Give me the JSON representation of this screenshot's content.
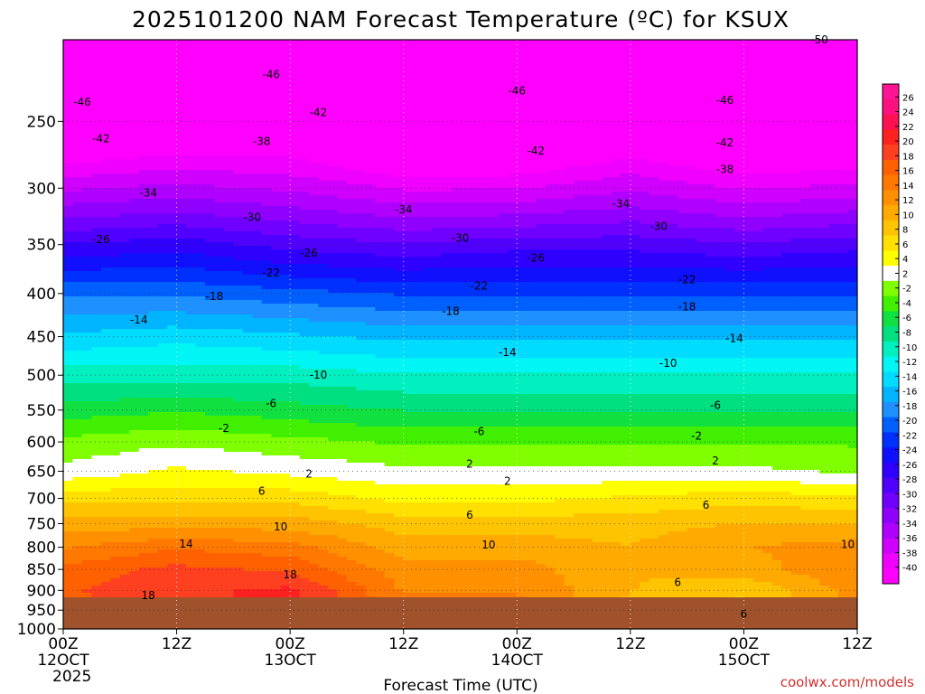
{
  "title": "2025101200 NAM Forecast Temperature (ºC) for KSUX",
  "xlabel": "Forecast Time (UTC)",
  "credit": "coolwx.com/models",
  "colors": {
    "ground": "#a0522d",
    "freezing_line": "#e0208a",
    "scale": [
      "#ff00ff",
      "#f000ff",
      "#d000ff",
      "#b000ff",
      "#9000ff",
      "#7000ff",
      "#5000ff",
      "#3000ff",
      "#1010ff",
      "#0030ff",
      "#0060ff",
      "#1e90ff",
      "#00b4ff",
      "#00dcff",
      "#00f5f5",
      "#00f0c0",
      "#00e080",
      "#10e040",
      "#40f000",
      "#80ff00",
      "#ffffff",
      "#ffff00",
      "#ffe000",
      "#ffc400",
      "#ffaa00",
      "#ff9000",
      "#ff7800",
      "#ff6000",
      "#ff4020",
      "#ff2020",
      "#ff1050",
      "#ff1080",
      "#ff1493"
    ]
  },
  "chart_data": {
    "type": "heatmap",
    "title": "2025101200 NAM Forecast Temperature (ºC) for KSUX",
    "xlabel": "Forecast Time (UTC)",
    "ylabel": "",
    "x_ticks": [
      {
        "t": 0,
        "l1": "00Z",
        "l2": "12OCT",
        "l3": "2025"
      },
      {
        "t": 12,
        "l1": "12Z",
        "l2": "",
        "l3": ""
      },
      {
        "t": 24,
        "l1": "00Z",
        "l2": "13OCT",
        "l3": ""
      },
      {
        "t": 36,
        "l1": "12Z",
        "l2": "",
        "l3": ""
      },
      {
        "t": 48,
        "l1": "00Z",
        "l2": "14OCT",
        "l3": ""
      },
      {
        "t": 60,
        "l1": "12Z",
        "l2": "",
        "l3": ""
      },
      {
        "t": 72,
        "l1": "00Z",
        "l2": "15OCT",
        "l3": ""
      },
      {
        "t": 84,
        "l1": "12Z",
        "l2": "",
        "l3": ""
      }
    ],
    "xlim": [
      0,
      84
    ],
    "y_ticks": [
      250,
      300,
      350,
      400,
      450,
      500,
      550,
      600,
      650,
      700,
      750,
      800,
      850,
      900,
      950,
      1000
    ],
    "ylim_hPa": [
      200,
      1000
    ],
    "y_scale": "log",
    "colorbar": {
      "labels": [
        26,
        24,
        22,
        20,
        18,
        16,
        14,
        12,
        10,
        8,
        6,
        4,
        2,
        -2,
        -4,
        -6,
        -8,
        -10,
        -12,
        -14,
        -16,
        -18,
        -20,
        -22,
        -24,
        -26,
        -28,
        -30,
        -32,
        -34,
        -36,
        -38,
        -40
      ],
      "range": [
        -42,
        28
      ]
    },
    "profile_hours": [
      0,
      12,
      24,
      36,
      48,
      60,
      72,
      84
    ],
    "profile_levels_hPa": [
      200,
      250,
      300,
      350,
      400,
      450,
      500,
      550,
      600,
      650,
      700,
      750,
      800,
      850,
      900,
      950,
      970
    ],
    "profiles": [
      [
        -52,
        -46,
        -36,
        -27,
        -19,
        -14,
        -9,
        -5,
        -1,
        1,
        6,
        10,
        13,
        16,
        17,
        17,
        17
      ],
      [
        -51,
        -44,
        -35,
        -26,
        -19,
        -13,
        -9,
        -4,
        0,
        3,
        6,
        10,
        15,
        18,
        19,
        18,
        18
      ],
      [
        -51,
        -44,
        -36,
        -28,
        -20,
        -14,
        -9,
        -5,
        -1,
        2,
        6,
        10,
        14,
        17,
        20,
        21,
        21
      ],
      [
        -54,
        -48,
        -38,
        -29,
        -21,
        -15,
        -10,
        -6,
        -2,
        1,
        4,
        8,
        10,
        12,
        13,
        14,
        14
      ],
      [
        -54,
        -47,
        -38,
        -28,
        -21,
        -15,
        -10,
        -6,
        -2,
        1,
        4,
        8,
        10,
        12,
        13,
        14,
        14
      ],
      [
        -53,
        -44,
        -36,
        -28,
        -21,
        -15,
        -10,
        -6,
        -2,
        1,
        5,
        8,
        9,
        9,
        9,
        8,
        8
      ],
      [
        -54,
        -47,
        -38,
        -29,
        -21,
        -15,
        -10,
        -6,
        -2,
        1,
        6,
        9,
        11,
        10,
        7,
        6,
        6
      ],
      [
        -53,
        -46,
        -37,
        -28,
        -21,
        -15,
        -10,
        -6,
        -2,
        0,
        5,
        9,
        12,
        13,
        12,
        12,
        12
      ]
    ],
    "contour_labels": [
      {
        "t": 80,
        "p": 200,
        "v": "-50"
      },
      {
        "t": 22,
        "p": 220,
        "v": "-46"
      },
      {
        "t": 2,
        "p": 237,
        "v": "-46"
      },
      {
        "t": 48,
        "p": 230,
        "v": "-46"
      },
      {
        "t": 70,
        "p": 236,
        "v": "-46"
      },
      {
        "t": 27,
        "p": 244,
        "v": "-42"
      },
      {
        "t": 4,
        "p": 262,
        "v": "-42"
      },
      {
        "t": 50,
        "p": 271,
        "v": "-42"
      },
      {
        "t": 70,
        "p": 265,
        "v": "-42"
      },
      {
        "t": 21,
        "p": 264,
        "v": "-38"
      },
      {
        "t": 70,
        "p": 285,
        "v": "-38"
      },
      {
        "t": 9,
        "p": 304,
        "v": "-34"
      },
      {
        "t": 36,
        "p": 318,
        "v": "-34"
      },
      {
        "t": 59,
        "p": 313,
        "v": "-34"
      },
      {
        "t": 20,
        "p": 325,
        "v": "-30"
      },
      {
        "t": 42,
        "p": 344,
        "v": "-30"
      },
      {
        "t": 63,
        "p": 333,
        "v": "-30"
      },
      {
        "t": 4,
        "p": 345,
        "v": "-26"
      },
      {
        "t": 26,
        "p": 358,
        "v": "-26"
      },
      {
        "t": 50,
        "p": 363,
        "v": "-26"
      },
      {
        "t": 22,
        "p": 378,
        "v": "-22"
      },
      {
        "t": 44,
        "p": 392,
        "v": "-22"
      },
      {
        "t": 66,
        "p": 385,
        "v": "-22"
      },
      {
        "t": 16,
        "p": 403,
        "v": "-18"
      },
      {
        "t": 41,
        "p": 420,
        "v": "-18"
      },
      {
        "t": 66,
        "p": 415,
        "v": "-18"
      },
      {
        "t": 8,
        "p": 430,
        "v": "-14"
      },
      {
        "t": 47,
        "p": 470,
        "v": "-14"
      },
      {
        "t": 71,
        "p": 452,
        "v": "-14"
      },
      {
        "t": 27,
        "p": 500,
        "v": "-10"
      },
      {
        "t": 64,
        "p": 484,
        "v": "-10"
      },
      {
        "t": 22,
        "p": 540,
        "v": "-6"
      },
      {
        "t": 44,
        "p": 583,
        "v": "-6"
      },
      {
        "t": 69,
        "p": 543,
        "v": "-6"
      },
      {
        "t": 17,
        "p": 578,
        "v": "-2"
      },
      {
        "t": 67,
        "p": 590,
        "v": "-2"
      },
      {
        "t": 26,
        "p": 655,
        "v": "2"
      },
      {
        "t": 43,
        "p": 637,
        "v": "2"
      },
      {
        "t": 47,
        "p": 668,
        "v": "2"
      },
      {
        "t": 69,
        "p": 632,
        "v": "2"
      },
      {
        "t": 21,
        "p": 686,
        "v": "6"
      },
      {
        "t": 43,
        "p": 733,
        "v": "6"
      },
      {
        "t": 68,
        "p": 713,
        "v": "6"
      },
      {
        "t": 65,
        "p": 881,
        "v": "6"
      },
      {
        "t": 72,
        "p": 960,
        "v": "6"
      },
      {
        "t": 23,
        "p": 757,
        "v": "10"
      },
      {
        "t": 45,
        "p": 795,
        "v": "10"
      },
      {
        "t": 83,
        "p": 794,
        "v": "10"
      },
      {
        "t": 13,
        "p": 793,
        "v": "14"
      },
      {
        "t": 24,
        "p": 862,
        "v": "18"
      },
      {
        "t": 9,
        "p": 913,
        "v": "18"
      }
    ],
    "grid": true,
    "legend": "colorbar right"
  }
}
